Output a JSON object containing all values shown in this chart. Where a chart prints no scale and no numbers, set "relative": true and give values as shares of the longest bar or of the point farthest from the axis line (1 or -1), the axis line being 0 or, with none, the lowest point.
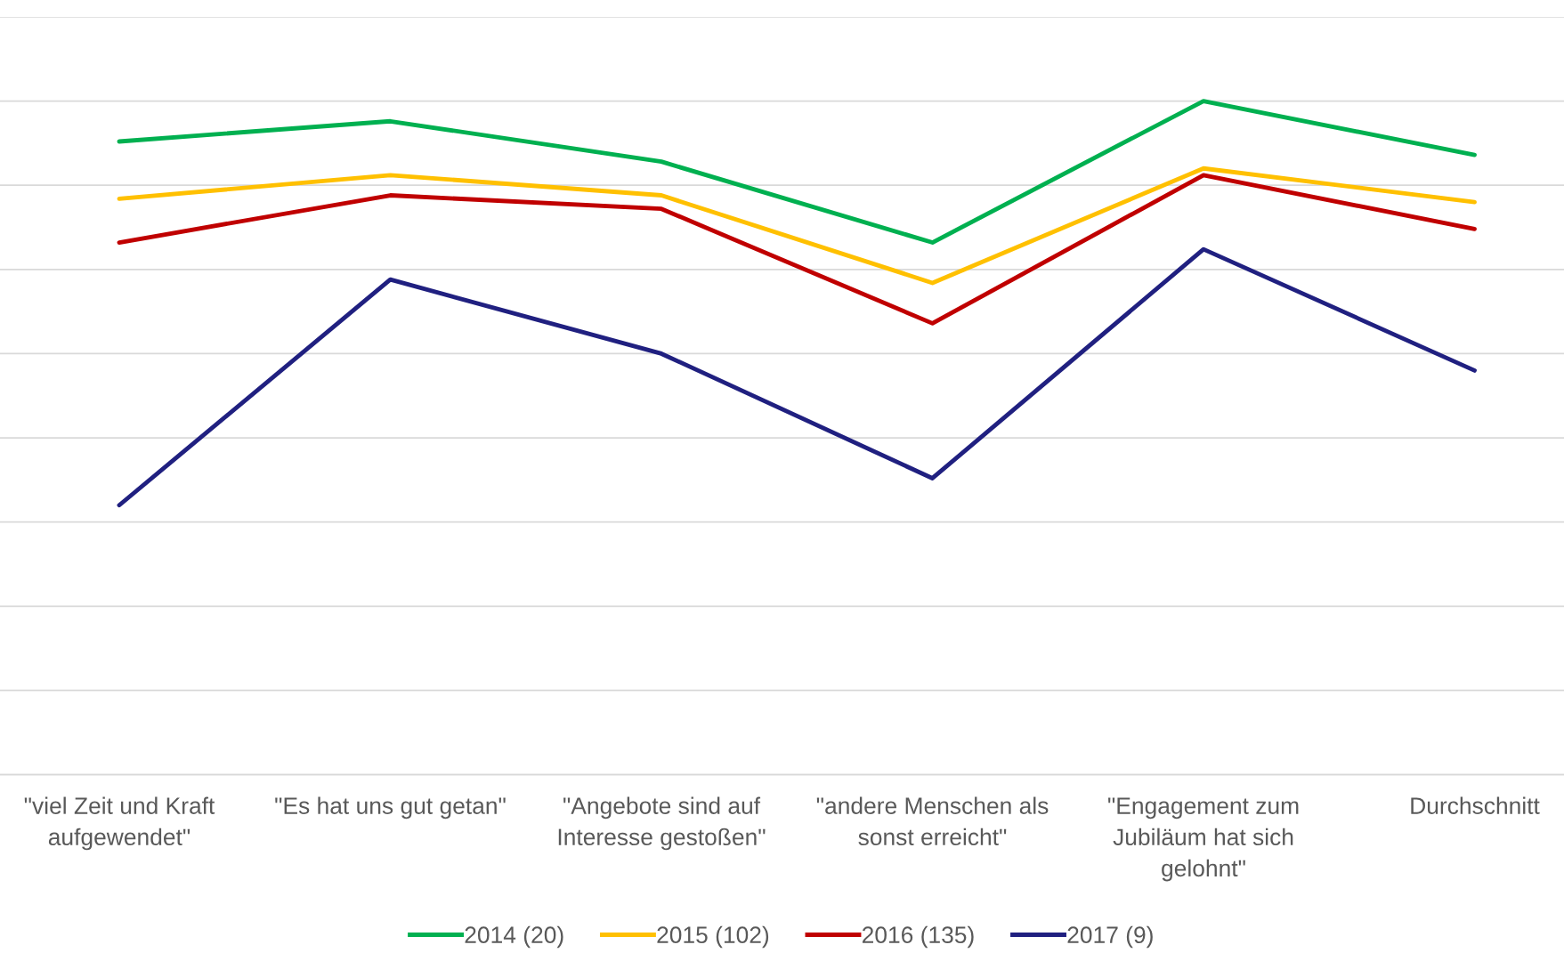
{
  "chart_data": {
    "type": "line",
    "relative": true,
    "grid": "y",
    "legend": "bottom",
    "marker": "none",
    "line_style": "solid",
    "categories": [
      "\"viel Zeit und Kraft\naufgewendet\"",
      "\"Es hat uns gut getan\"",
      "\"Angebote sind auf\nInteresse gestoßen\"",
      "\"andere Menschen als\nsonst erreicht\"",
      "\"Engagement zum\nJubiläum hat sich\ngelohnt\"",
      "Durchschnitt"
    ],
    "series": [
      {
        "name": "2014 (20)",
        "color": "#00b050",
        "values": [
          0.94,
          0.97,
          0.91,
          0.79,
          1,
          0.92
        ]
      },
      {
        "name": "2015 (102)",
        "color": "#ffc000",
        "values": [
          0.855,
          0.89,
          0.86,
          0.73,
          0.9,
          0.85
        ]
      },
      {
        "name": "2016 (135)",
        "color": "#c00000",
        "values": [
          0.79,
          0.86,
          0.84,
          0.67,
          0.89,
          0.81
        ]
      },
      {
        "name": "2017 (9)",
        "color": "#202080",
        "values": [
          0.4,
          0.735,
          0.625,
          0.44,
          0.78,
          0.6
        ]
      }
    ]
  }
}
